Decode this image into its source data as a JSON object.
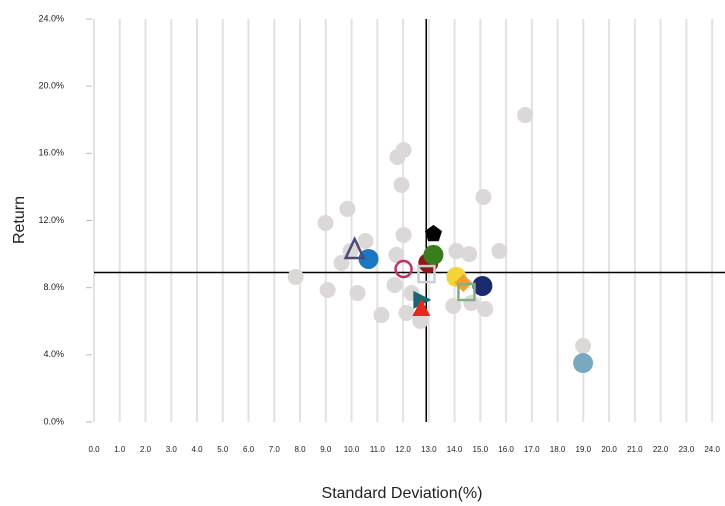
{
  "chart_data": {
    "type": "scatter",
    "x_label": "Standard Deviation(%)",
    "y_label": "Return",
    "xlim": [
      0,
      24.5
    ],
    "ylim": [
      0,
      24
    ],
    "xticks": [
      {
        "value": 0,
        "label": "0.0"
      },
      {
        "value": 1,
        "label": "1.0"
      },
      {
        "value": 2,
        "label": "2.0"
      },
      {
        "value": 3,
        "label": "3.0"
      },
      {
        "value": 4,
        "label": "4.0"
      },
      {
        "value": 5,
        "label": "5.0"
      },
      {
        "value": 6,
        "label": "6.0"
      },
      {
        "value": 7,
        "label": "7.0"
      },
      {
        "value": 8,
        "label": "8.0"
      },
      {
        "value": 9,
        "label": "9.0"
      },
      {
        "value": 10,
        "label": "10.0"
      },
      {
        "value": 11,
        "label": "11.0"
      },
      {
        "value": 12,
        "label": "12.0"
      },
      {
        "value": 13,
        "label": "13.0"
      },
      {
        "value": 14,
        "label": "14.0"
      },
      {
        "value": 15,
        "label": "15.0"
      },
      {
        "value": 16,
        "label": "16.0"
      },
      {
        "value": 17,
        "label": "17.0"
      },
      {
        "value": 18,
        "label": "18.0"
      },
      {
        "value": 19,
        "label": "19.0"
      },
      {
        "value": 20,
        "label": "20.0"
      },
      {
        "value": 21,
        "label": "21.0"
      },
      {
        "value": 22,
        "label": "22.0"
      },
      {
        "value": 23,
        "label": "23.0"
      },
      {
        "value": 24,
        "label": "24.0"
      }
    ],
    "yticks": [
      {
        "value": 0,
        "label": "0.0%"
      },
      {
        "value": 4,
        "label": "4.0%"
      },
      {
        "value": 8,
        "label": "8.0%"
      },
      {
        "value": 12,
        "label": "12.0%"
      },
      {
        "value": 16,
        "label": "16.0%"
      },
      {
        "value": 20,
        "label": "20.0%"
      },
      {
        "value": 24,
        "label": "24.0%"
      }
    ],
    "grid": true,
    "reference_lines": {
      "x": 12.9,
      "y": 8.9,
      "color": "#000000"
    },
    "series": [
      {
        "color": "#dcd8d8",
        "marker": "circle",
        "x": [
          16.74,
          12.02,
          11.78,
          11.94,
          15.12,
          9.84,
          8.99,
          12.02,
          10.54,
          9.96,
          9.61,
          11.74,
          14.07,
          14.57,
          15.74,
          7.83,
          9.07,
          10.23,
          11.67,
          12.33,
          11.16,
          12.13,
          12.67,
          13.95,
          14.65,
          15.19,
          18.99
        ],
        "values": [
          18.28,
          16.2,
          15.78,
          14.12,
          13.4,
          12.69,
          11.85,
          11.14,
          10.78,
          10.18,
          9.47,
          9.95,
          10.18,
          10.0,
          10.18,
          8.64,
          7.86,
          7.68,
          8.16,
          7.68,
          6.37,
          6.49,
          6.02,
          6.91,
          7.09,
          6.73,
          4.53
        ]
      },
      {
        "color": "#1a78c2",
        "marker": "circle",
        "x": [
          10.66
        ],
        "values": [
          9.71
        ]
      },
      {
        "color": "#4a4a7a",
        "marker": "triangle-open",
        "x": [
          10.12
        ],
        "values": [
          10.24
        ]
      },
      {
        "color": "#c0306a",
        "marker": "ring",
        "x": [
          12.02
        ],
        "values": [
          9.11
        ]
      },
      {
        "color": "#8b1a1a",
        "marker": "circle",
        "x": [
          12.98
        ],
        "values": [
          9.47
        ]
      },
      {
        "color": "#3a7d1e",
        "marker": "circle",
        "x": [
          13.18
        ],
        "values": [
          9.95
        ]
      },
      {
        "color": "#000000",
        "marker": "pentagon",
        "x": [
          13.18
        ],
        "values": [
          11.2
        ]
      },
      {
        "color": "#c8d0d8",
        "marker": "square-open",
        "x": [
          12.91
        ],
        "values": [
          8.81
        ]
      },
      {
        "color": "#f5d33a",
        "marker": "circle",
        "x": [
          14.07
        ],
        "values": [
          8.64
        ]
      },
      {
        "color": "#f0a030",
        "marker": "diamond",
        "x": [
          14.34
        ],
        "values": [
          8.28
        ]
      },
      {
        "color": "#1a2a6c",
        "marker": "circle",
        "x": [
          15.08
        ],
        "values": [
          8.1
        ]
      },
      {
        "color": "#7fb08a",
        "marker": "square-open",
        "x": [
          14.46
        ],
        "values": [
          7.74
        ]
      },
      {
        "color": "#1a6670",
        "marker": "triangle-right",
        "x": [
          12.71
        ],
        "values": [
          7.27
        ]
      },
      {
        "color": "#e8281e",
        "marker": "triangle",
        "x": [
          12.71
        ],
        "values": [
          6.79
        ]
      },
      {
        "color": "#7aa8c0",
        "marker": "circle",
        "x": [
          18.99
        ],
        "values": [
          3.51
        ]
      }
    ]
  }
}
